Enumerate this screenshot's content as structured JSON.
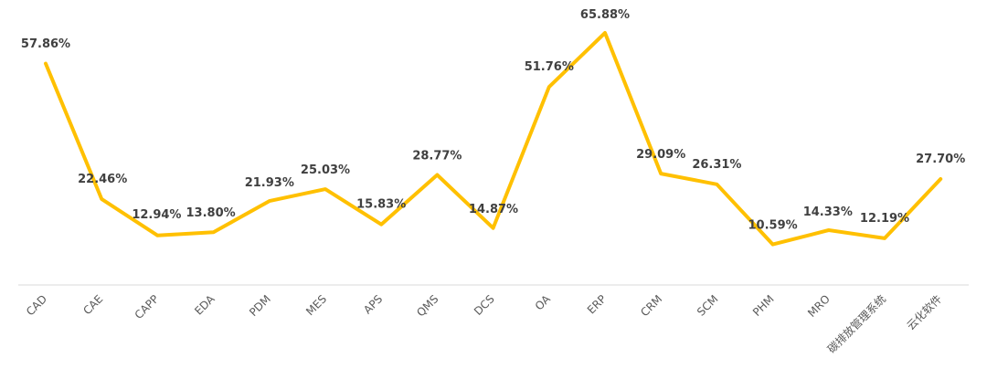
{
  "chart_data": {
    "type": "line",
    "title": "",
    "xlabel": "",
    "ylabel": "",
    "categories": [
      "CAD",
      "CAE",
      "CAPP",
      "EDA",
      "PDM",
      "MES",
      "APS",
      "QMS",
      "DCS",
      "OA",
      "ERP",
      "CRM",
      "SCM",
      "PHM",
      "MRO",
      "碳排放管理系统",
      "云化软件"
    ],
    "series": [
      {
        "values": [
          57.86,
          22.46,
          12.94,
          13.8,
          21.93,
          25.03,
          15.83,
          28.77,
          14.87,
          51.76,
          65.88,
          29.09,
          26.31,
          10.59,
          14.33,
          12.19,
          27.7
        ],
        "labels": [
          "57.86%",
          "22.46%",
          "12.94%",
          "13.80%",
          "21.93%",
          "25.03%",
          "15.83%",
          "28.77%",
          "14.87%",
          "51.76%",
          "65.88%",
          "29.09%",
          "26.31%",
          "10.59%",
          "14.33%",
          "12.19%",
          "27.70%"
        ],
        "color": "#FFC000"
      }
    ],
    "ylim": [
      0,
      70
    ],
    "grid": false,
    "legend": "none",
    "axis_color": "#D9D9D9",
    "label_color": "#404040",
    "tick_color": "#595959"
  }
}
